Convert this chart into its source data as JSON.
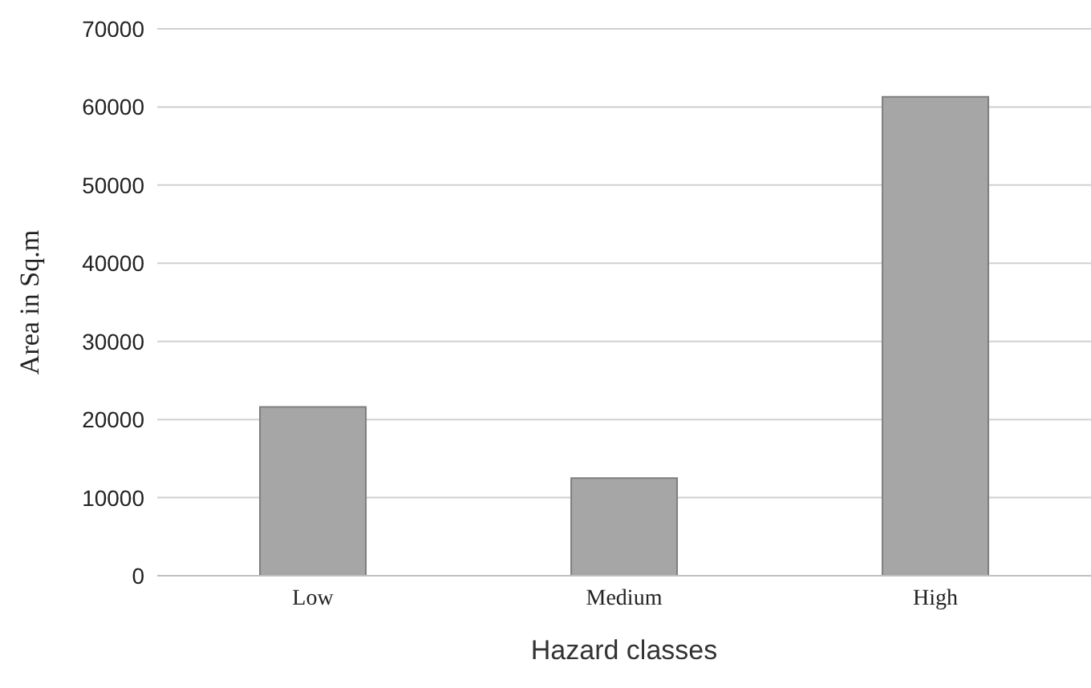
{
  "chart_data": {
    "type": "bar",
    "xlabel": "Hazard classes",
    "ylabel": "Area in Sq.m",
    "categories": [
      "Low",
      "Medium",
      "High"
    ],
    "values": [
      21600,
      12500,
      61300
    ],
    "color": "#a6a6a6",
    "ylim": [
      0,
      70000
    ],
    "yticks": [
      0,
      10000,
      20000,
      30000,
      40000,
      50000,
      60000,
      70000
    ],
    "grid": "y"
  }
}
